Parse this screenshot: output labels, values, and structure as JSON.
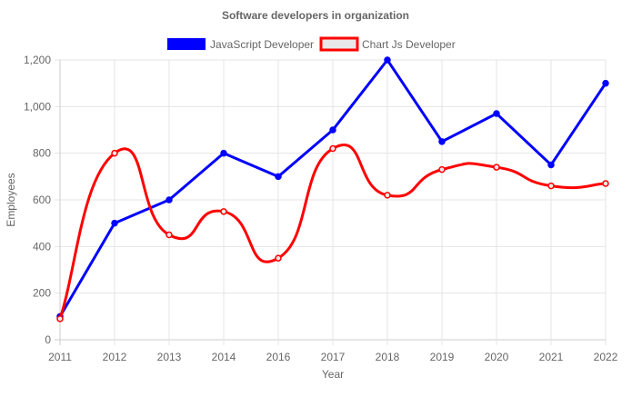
{
  "chart_data": {
    "type": "line",
    "title": "Software developers in organization",
    "xlabel": "Year",
    "ylabel": "Employees",
    "categories": [
      "2011",
      "2012",
      "2013",
      "2014",
      "2016",
      "2017",
      "2018",
      "2019",
      "2020",
      "2021",
      "2022"
    ],
    "ylim": [
      0,
      1200
    ],
    "yticks": [
      "0",
      "200",
      "400",
      "600",
      "800",
      "1,000",
      "1,200"
    ],
    "grid": true,
    "legend": "top",
    "series": [
      {
        "name": "JavaScript Developer",
        "color": "#0000ff",
        "fill": "#0000ff",
        "smooth": false,
        "values": [
          100,
          500,
          600,
          800,
          700,
          900,
          1200,
          850,
          970,
          750,
          1100
        ]
      },
      {
        "name": "Chart Js Developer",
        "color": "#ff0000",
        "fill": "#e8e8e8",
        "smooth": true,
        "values": [
          90,
          800,
          450,
          550,
          350,
          820,
          620,
          730,
          740,
          660,
          670
        ]
      }
    ]
  }
}
